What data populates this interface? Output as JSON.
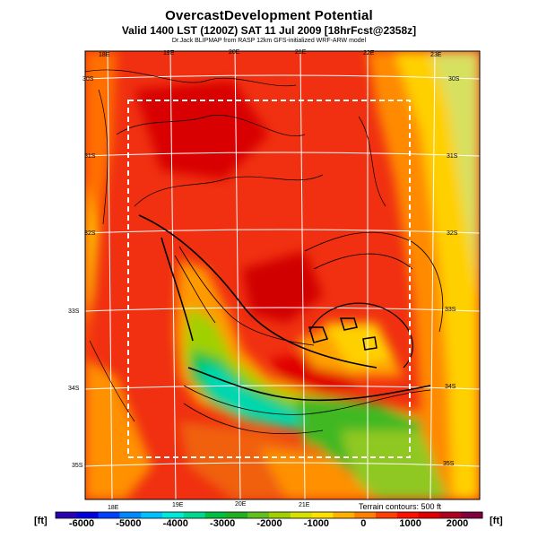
{
  "title": "OvercastDevelopment Potential",
  "subtitle": "Valid 1400 LST (1200Z) SAT 11 Jul 2009 [18hrFcst@2358z]",
  "source_line": "Dr.Jack BLIPMAP from RASP 12km GFS-initialized WRF-ARW model",
  "terrain_note": "Terrain contours: 500 ft",
  "colorbar": {
    "unit_left": "[ft]",
    "unit_right": "[ft]",
    "ticks": [
      "-6000",
      "-5000",
      "-4000",
      "-3000",
      "-2000",
      "-1000",
      "0",
      "1000",
      "2000"
    ],
    "colors": [
      "#2a00b0",
      "#0000e0",
      "#0040ff",
      "#0088ff",
      "#00c0ff",
      "#00e8d8",
      "#00d890",
      "#00c040",
      "#20b020",
      "#60c020",
      "#a0d000",
      "#d8e000",
      "#ffe000",
      "#ffb000",
      "#ff8000",
      "#ff4000",
      "#ff1000",
      "#e00000",
      "#b00020",
      "#800040"
    ]
  },
  "lon_labels_top": [
    "18E",
    "19E",
    "20E",
    "21E",
    "22E",
    "23E"
  ],
  "lon_labels_bottom": [
    "18E",
    "19E",
    "20E",
    "21E"
  ],
  "lat_labels_left": [
    "30S",
    "31S",
    "32S",
    "33S",
    "34S",
    "35S"
  ],
  "lat_labels_right": [
    "30S",
    "31S",
    "32S",
    "33S",
    "34S",
    "35S"
  ]
}
